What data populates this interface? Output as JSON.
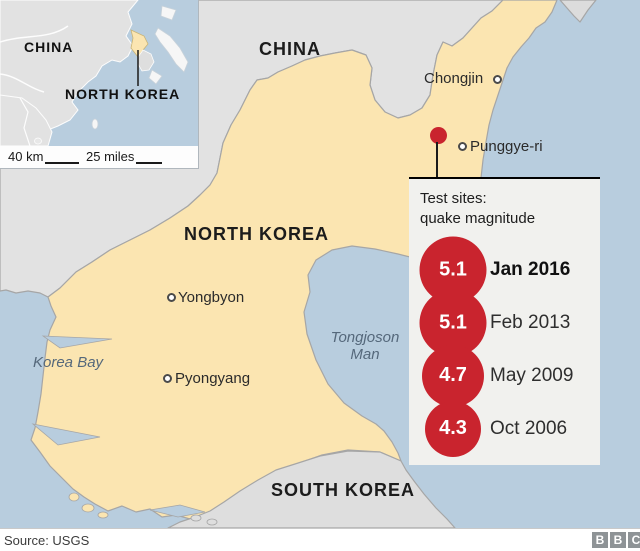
{
  "colors": {
    "sea": "#b8cdde",
    "china_land": "#e2e2e2",
    "south_korea_land": "#dedede",
    "russia_land": "#dcdcdc",
    "north_korea_land": "#fbe5b1",
    "coast_stroke": "#a6a6a6",
    "accent_red": "#c9242e",
    "panel_bg": "#f1f1ee",
    "bbc_box_gray": "#8e9396",
    "sea_label_blue": "#55687b"
  },
  "inset": {
    "china_label": "CHINA",
    "north_korea_label": "NORTH KOREA",
    "scale_km": "40 km",
    "scale_miles": "25 miles"
  },
  "map": {
    "china_label": "CHINA",
    "north_korea_label": "NORTH KOREA",
    "south_korea_label": "SOUTH KOREA",
    "cities": [
      {
        "name": "Chongjin"
      },
      {
        "name": "Punggye-ri"
      },
      {
        "name": "Yongbyon"
      },
      {
        "name": "Pyongyang"
      }
    ],
    "sea_labels": {
      "korea_bay": "Korea Bay",
      "tongjoson_line1": "Tongjoson",
      "tongjoson_line2": "Man"
    }
  },
  "panel": {
    "title_line1": "Test sites:",
    "title_line2": "quake magnitude",
    "tests": [
      {
        "magnitude": "5.1",
        "date": "Jan 2016",
        "highlight": true
      },
      {
        "magnitude": "5.1",
        "date": "Feb 2013",
        "highlight": false
      },
      {
        "magnitude": "4.7",
        "date": "May 2009",
        "highlight": false
      },
      {
        "magnitude": "4.3",
        "date": "Oct 2006",
        "highlight": false
      }
    ]
  },
  "footer": {
    "source": "Source: USGS",
    "logo_letters": [
      "B",
      "B",
      "C"
    ]
  }
}
